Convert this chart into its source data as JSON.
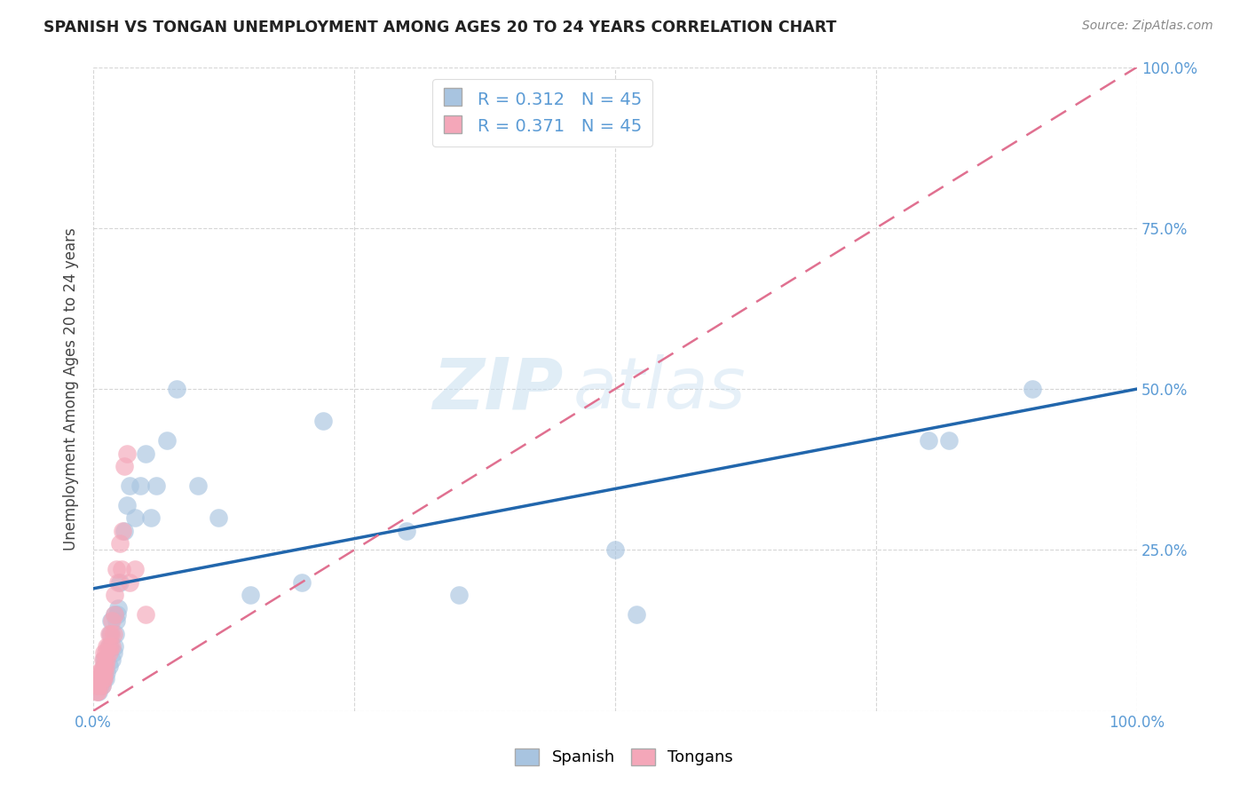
{
  "title": "SPANISH VS TONGAN UNEMPLOYMENT AMONG AGES 20 TO 24 YEARS CORRELATION CHART",
  "source": "Source: ZipAtlas.com",
  "ylabel": "Unemployment Among Ages 20 to 24 years",
  "xlabel": "",
  "xlim": [
    0.0,
    1.0
  ],
  "ylim": [
    0.0,
    1.0
  ],
  "xticks": [
    0.0,
    0.25,
    0.5,
    0.75,
    1.0
  ],
  "yticks": [
    0.0,
    0.25,
    0.5,
    0.75,
    1.0
  ],
  "xtick_labels": [
    "0.0%",
    "",
    "",
    "",
    "100.0%"
  ],
  "right_ytick_labels": [
    "",
    "25.0%",
    "50.0%",
    "75.0%",
    "100.0%"
  ],
  "watermark": "ZIPatlas",
  "legend_r_spanish": "R = 0.312",
  "legend_n_spanish": "N = 45",
  "legend_r_tongan": "R = 0.371",
  "legend_n_tongan": "N = 45",
  "spanish_color": "#a8c4e0",
  "tongan_color": "#f4a7b9",
  "spanish_line_color": "#2166ac",
  "tongan_line_color": "#e07090",
  "background_color": "#ffffff",
  "grid_color": "#cccccc",
  "tick_color": "#5b9bd5",
  "spanish_x": [
    0.005,
    0.007,
    0.008,
    0.009,
    0.01,
    0.01,
    0.01,
    0.01,
    0.012,
    0.013,
    0.015,
    0.015,
    0.016,
    0.017,
    0.018,
    0.019,
    0.02,
    0.02,
    0.021,
    0.022,
    0.023,
    0.024,
    0.025,
    0.03,
    0.032,
    0.035,
    0.04,
    0.045,
    0.05,
    0.055,
    0.06,
    0.07,
    0.08,
    0.1,
    0.12,
    0.15,
    0.2,
    0.22,
    0.3,
    0.35,
    0.5,
    0.52,
    0.8,
    0.82,
    0.9
  ],
  "spanish_y": [
    0.03,
    0.04,
    0.04,
    0.05,
    0.05,
    0.06,
    0.07,
    0.08,
    0.05,
    0.06,
    0.07,
    0.1,
    0.12,
    0.14,
    0.08,
    0.09,
    0.1,
    0.15,
    0.12,
    0.14,
    0.15,
    0.16,
    0.2,
    0.28,
    0.32,
    0.35,
    0.3,
    0.35,
    0.4,
    0.3,
    0.35,
    0.42,
    0.5,
    0.35,
    0.3,
    0.18,
    0.2,
    0.45,
    0.28,
    0.18,
    0.25,
    0.15,
    0.42,
    0.42,
    0.5
  ],
  "tongan_x": [
    0.003,
    0.003,
    0.004,
    0.004,
    0.005,
    0.005,
    0.006,
    0.006,
    0.007,
    0.007,
    0.008,
    0.008,
    0.008,
    0.009,
    0.009,
    0.009,
    0.01,
    0.01,
    0.01,
    0.011,
    0.011,
    0.012,
    0.012,
    0.013,
    0.013,
    0.014,
    0.015,
    0.015,
    0.016,
    0.017,
    0.018,
    0.018,
    0.019,
    0.02,
    0.02,
    0.022,
    0.024,
    0.025,
    0.027,
    0.028,
    0.03,
    0.032,
    0.035,
    0.04,
    0.05
  ],
  "tongan_y": [
    0.03,
    0.04,
    0.03,
    0.05,
    0.04,
    0.06,
    0.04,
    0.05,
    0.05,
    0.06,
    0.04,
    0.05,
    0.06,
    0.05,
    0.06,
    0.08,
    0.05,
    0.07,
    0.09,
    0.06,
    0.08,
    0.07,
    0.09,
    0.08,
    0.1,
    0.1,
    0.09,
    0.12,
    0.1,
    0.12,
    0.1,
    0.14,
    0.12,
    0.15,
    0.18,
    0.22,
    0.2,
    0.26,
    0.22,
    0.28,
    0.38,
    0.4,
    0.2,
    0.22,
    0.15
  ],
  "spanish_line_x0": 0.0,
  "spanish_line_y0": 0.19,
  "spanish_line_x1": 1.0,
  "spanish_line_y1": 0.5,
  "tongan_line_x0": 0.0,
  "tongan_line_y0": 0.0,
  "tongan_line_x1": 1.0,
  "tongan_line_y1": 1.0
}
